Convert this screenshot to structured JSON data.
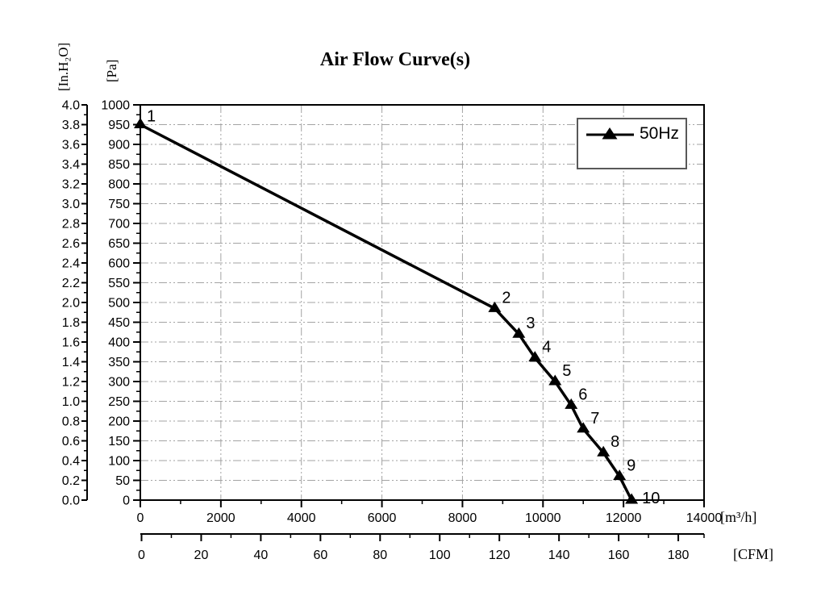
{
  "title": "Air Flow Curve(s)",
  "legend": {
    "series_label": "50Hz"
  },
  "colors": {
    "background": "#ffffff",
    "line": "#000000",
    "frame": "#000000",
    "grid": "#a3a3a3",
    "text": "#000000",
    "legend_border": "#595959"
  },
  "chart_data": {
    "type": "line",
    "title": "Air Flow Curve(s)",
    "grid": {
      "shown": true,
      "style": "dash-dot-dot",
      "x_interval_m3h": 2000,
      "y_interval_pa": 50
    },
    "legend": {
      "position": "top-right",
      "entries": [
        {
          "label": "50Hz",
          "marker": "filled-triangle-up",
          "color": "#000000"
        }
      ]
    },
    "axes": {
      "x_m3h": {
        "unit": "[m³/h]",
        "min": 0,
        "max": 14000,
        "major_tick": 2000,
        "minor_tick": 1000,
        "tick_labels": [
          "0",
          "2000",
          "4000",
          "6000",
          "8000",
          "10000",
          "12000",
          "14000"
        ]
      },
      "x_cfm": {
        "unit": "[CFM]",
        "min": 0,
        "max": 180,
        "major_tick": 20,
        "minor_tick": 10,
        "tick_labels": [
          "0",
          "20",
          "40",
          "60",
          "80",
          "100",
          "120",
          "140",
          "160",
          "180"
        ]
      },
      "y_pa": {
        "unit": "[Pa]",
        "min": 0,
        "max": 1000,
        "major_tick": 50,
        "minor_tick": 25,
        "tick_labels": [
          "1000",
          "950",
          "900",
          "850",
          "800",
          "750",
          "700",
          "650",
          "600",
          "550",
          "500",
          "450",
          "400",
          "350",
          "300",
          "250",
          "200",
          "150",
          "100",
          "50",
          "0"
        ]
      },
      "y_inh2o": {
        "unit": "[In.H₂O]",
        "min": 0.0,
        "max": 4.0,
        "major_tick": 0.2,
        "minor_tick": 0.1,
        "tick_labels": [
          "4.0",
          "3.8",
          "3.6",
          "3.4",
          "3.2",
          "3.0",
          "2.8",
          "2.6",
          "2.4",
          "2.2",
          "2.0",
          "1.8",
          "1.6",
          "1.4",
          "1.2",
          "1.0",
          "0.8",
          "0.6",
          "0.4",
          "0.2",
          "0.0"
        ]
      }
    },
    "series": [
      {
        "name": "50Hz",
        "marker": "filled-triangle-up",
        "color": "#000000",
        "points": [
          {
            "label": "1",
            "m3h": 0,
            "pa": 950
          },
          {
            "label": "2",
            "m3h": 8800,
            "pa": 485
          },
          {
            "label": "3",
            "m3h": 9400,
            "pa": 420
          },
          {
            "label": "4",
            "m3h": 9800,
            "pa": 360
          },
          {
            "label": "5",
            "m3h": 10300,
            "pa": 300
          },
          {
            "label": "6",
            "m3h": 10700,
            "pa": 240
          },
          {
            "label": "7",
            "m3h": 11000,
            "pa": 180
          },
          {
            "label": "8",
            "m3h": 11500,
            "pa": 120
          },
          {
            "label": "9",
            "m3h": 11900,
            "pa": 60
          },
          {
            "label": "10",
            "m3h": 12200,
            "pa": 0
          }
        ]
      }
    ]
  }
}
